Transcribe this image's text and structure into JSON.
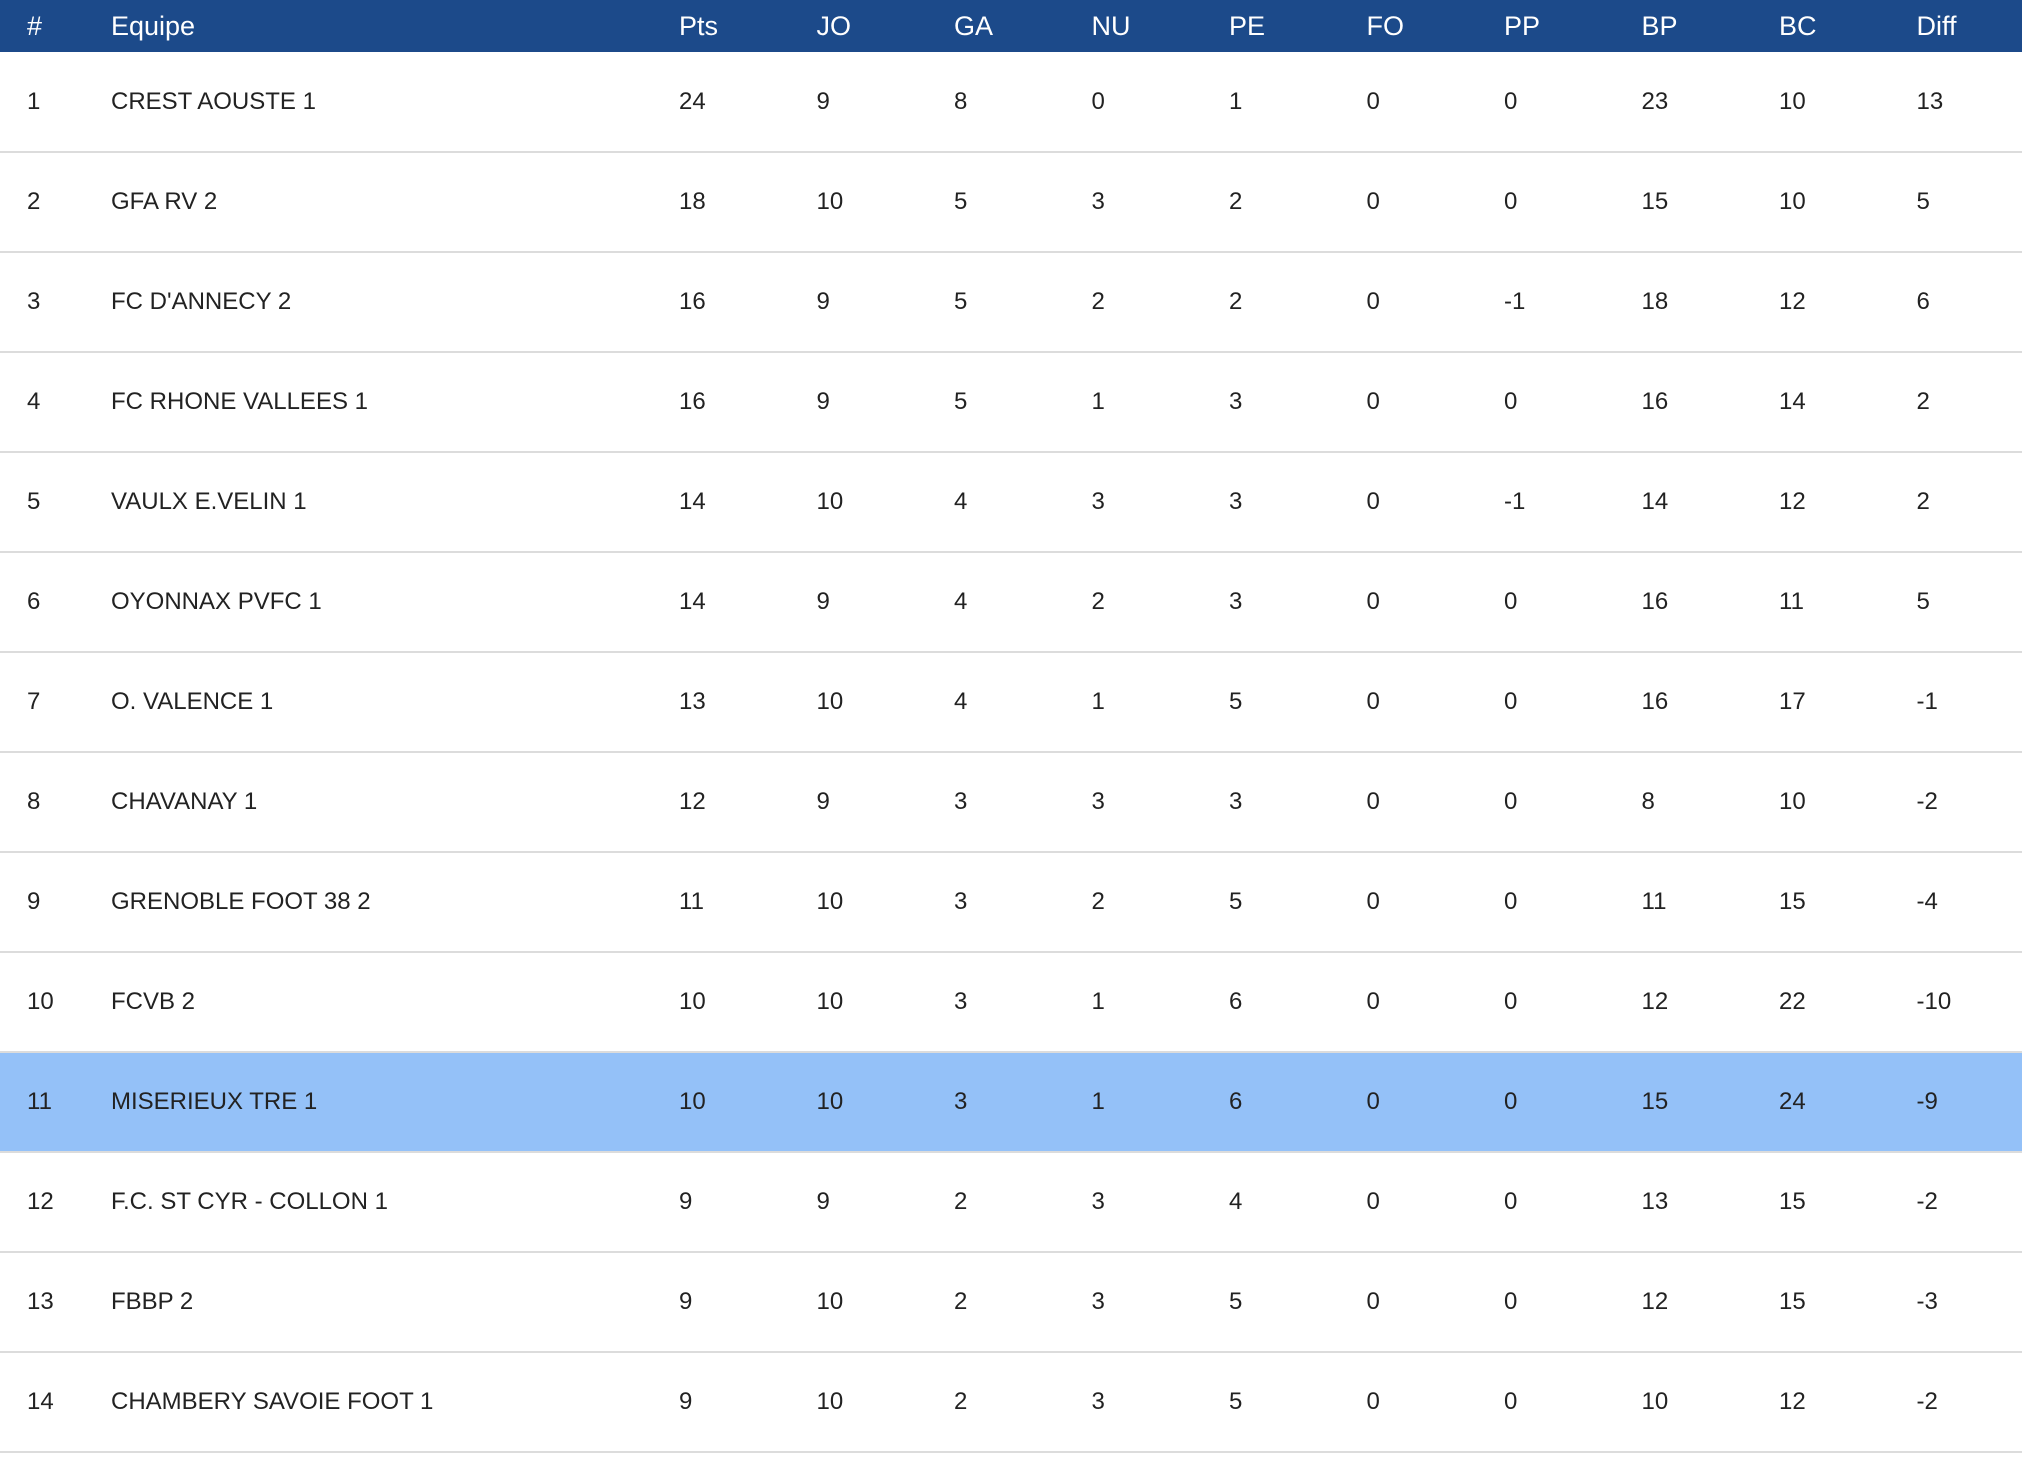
{
  "columns": [
    "#",
    "Equipe",
    "Pts",
    "JO",
    "GA",
    "NU",
    "PE",
    "FO",
    "PP",
    "BP",
    "BC",
    "Diff"
  ],
  "highlight_color": "#94c1f8",
  "header_color": "#1c4a8a",
  "rows": [
    {
      "rank": "1",
      "team": "CREST AOUSTE 1",
      "pts": "24",
      "jo": "9",
      "ga": "8",
      "nu": "0",
      "pe": "1",
      "fo": "0",
      "pp": "0",
      "bp": "23",
      "bc": "10",
      "diff": "13",
      "highlight": false
    },
    {
      "rank": "2",
      "team": "GFA RV 2",
      "pts": "18",
      "jo": "10",
      "ga": "5",
      "nu": "3",
      "pe": "2",
      "fo": "0",
      "pp": "0",
      "bp": "15",
      "bc": "10",
      "diff": "5",
      "highlight": false
    },
    {
      "rank": "3",
      "team": "FC D'ANNECY 2",
      "pts": "16",
      "jo": "9",
      "ga": "5",
      "nu": "2",
      "pe": "2",
      "fo": "0",
      "pp": "-1",
      "bp": "18",
      "bc": "12",
      "diff": "6",
      "highlight": false
    },
    {
      "rank": "4",
      "team": "FC RHONE VALLEES 1",
      "pts": "16",
      "jo": "9",
      "ga": "5",
      "nu": "1",
      "pe": "3",
      "fo": "0",
      "pp": "0",
      "bp": "16",
      "bc": "14",
      "diff": "2",
      "highlight": false
    },
    {
      "rank": "5",
      "team": "VAULX E.VELIN 1",
      "pts": "14",
      "jo": "10",
      "ga": "4",
      "nu": "3",
      "pe": "3",
      "fo": "0",
      "pp": "-1",
      "bp": "14",
      "bc": "12",
      "diff": "2",
      "highlight": false
    },
    {
      "rank": "6",
      "team": "OYONNAX PVFC 1",
      "pts": "14",
      "jo": "9",
      "ga": "4",
      "nu": "2",
      "pe": "3",
      "fo": "0",
      "pp": "0",
      "bp": "16",
      "bc": "11",
      "diff": "5",
      "highlight": false
    },
    {
      "rank": "7",
      "team": "O. VALENCE 1",
      "pts": "13",
      "jo": "10",
      "ga": "4",
      "nu": "1",
      "pe": "5",
      "fo": "0",
      "pp": "0",
      "bp": "16",
      "bc": "17",
      "diff": "-1",
      "highlight": false
    },
    {
      "rank": "8",
      "team": "CHAVANAY 1",
      "pts": "12",
      "jo": "9",
      "ga": "3",
      "nu": "3",
      "pe": "3",
      "fo": "0",
      "pp": "0",
      "bp": "8",
      "bc": "10",
      "diff": "-2",
      "highlight": false
    },
    {
      "rank": "9",
      "team": "GRENOBLE FOOT 38 2",
      "pts": "11",
      "jo": "10",
      "ga": "3",
      "nu": "2",
      "pe": "5",
      "fo": "0",
      "pp": "0",
      "bp": "11",
      "bc": "15",
      "diff": "-4",
      "highlight": false
    },
    {
      "rank": "10",
      "team": "FCVB 2",
      "pts": "10",
      "jo": "10",
      "ga": "3",
      "nu": "1",
      "pe": "6",
      "fo": "0",
      "pp": "0",
      "bp": "12",
      "bc": "22",
      "diff": "-10",
      "highlight": false
    },
    {
      "rank": "11",
      "team": "MISERIEUX TRE 1",
      "pts": "10",
      "jo": "10",
      "ga": "3",
      "nu": "1",
      "pe": "6",
      "fo": "0",
      "pp": "0",
      "bp": "15",
      "bc": "24",
      "diff": "-9",
      "highlight": true
    },
    {
      "rank": "12",
      "team": "F.C. ST CYR - COLLON 1",
      "pts": "9",
      "jo": "9",
      "ga": "2",
      "nu": "3",
      "pe": "4",
      "fo": "0",
      "pp": "0",
      "bp": "13",
      "bc": "15",
      "diff": "-2",
      "highlight": false
    },
    {
      "rank": "13",
      "team": "FBBP 2",
      "pts": "9",
      "jo": "10",
      "ga": "2",
      "nu": "3",
      "pe": "5",
      "fo": "0",
      "pp": "0",
      "bp": "12",
      "bc": "15",
      "diff": "-3",
      "highlight": false
    },
    {
      "rank": "14",
      "team": "CHAMBERY SAVOIE FOOT 1",
      "pts": "9",
      "jo": "10",
      "ga": "2",
      "nu": "3",
      "pe": "5",
      "fo": "0",
      "pp": "0",
      "bp": "10",
      "bc": "12",
      "diff": "-2",
      "highlight": false
    }
  ]
}
